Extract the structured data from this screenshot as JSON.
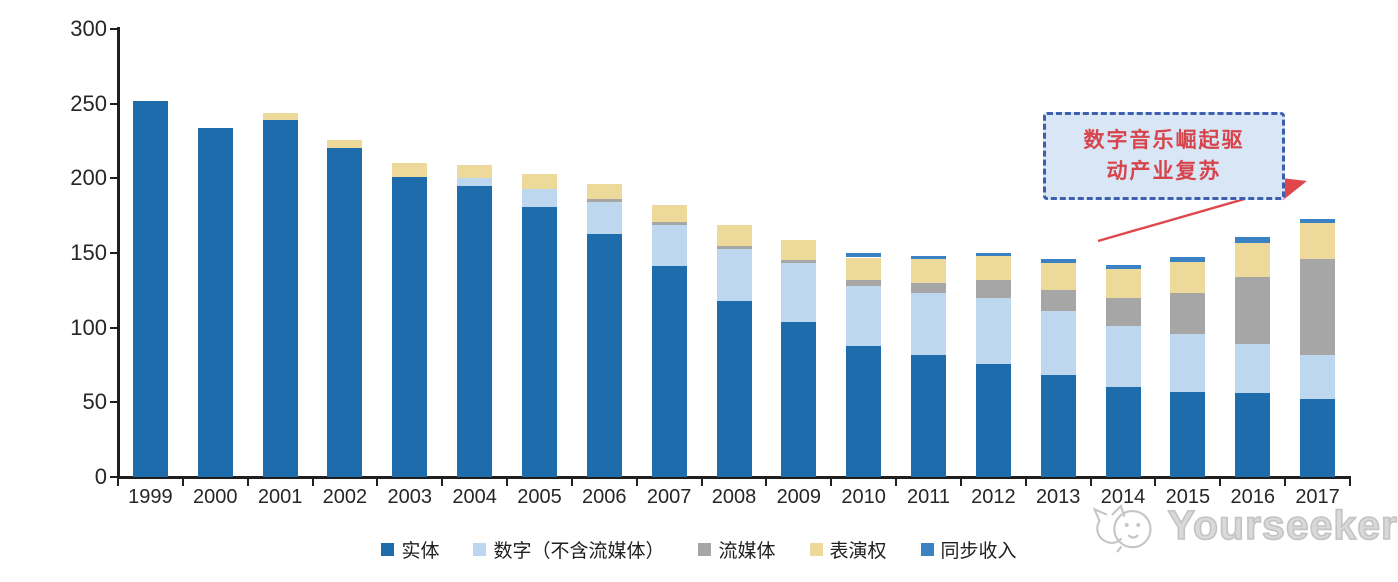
{
  "annotation": {
    "line1": "数字音乐崛起驱",
    "line2": "动产业复苏",
    "box_fill": "#d9e6f6",
    "border_color": "#3d5fae",
    "text_color": "#d8444c",
    "arrow_color": "#e0474d"
  },
  "watermark": {
    "brand": "Yourseeker",
    "logo": "cat-logo-icon",
    "color": "#c3c3c3"
  },
  "chart_data": {
    "type": "bar",
    "stacked": true,
    "title": "",
    "xlabel": "",
    "ylabel": "",
    "grid": false,
    "legend_position": "bottom",
    "ylim": [
      0,
      300
    ],
    "yticks": [
      0,
      50,
      100,
      150,
      200,
      250,
      300
    ],
    "categories": [
      "1999",
      "2000",
      "2001",
      "2002",
      "2003",
      "2004",
      "2005",
      "2006",
      "2007",
      "2008",
      "2009",
      "2010",
      "2011",
      "2012",
      "2013",
      "2014",
      "2015",
      "2016",
      "2017"
    ],
    "series": [
      {
        "name": "实体",
        "color": "#1e6cac",
        "values": [
          252,
          234,
          239,
          220,
          201,
          195,
          181,
          163,
          141,
          118,
          104,
          88,
          82,
          76,
          68,
          60,
          57,
          56,
          52
        ]
      },
      {
        "name": "数字（不含流媒体）",
        "color": "#bdd7ee",
        "values": [
          0,
          0,
          0,
          0,
          0,
          5,
          12,
          21,
          28,
          35,
          39,
          40,
          41,
          44,
          43,
          41,
          39,
          33,
          30
        ]
      },
      {
        "name": "流媒体",
        "color": "#a6a6a6",
        "values": [
          0,
          0,
          0,
          0,
          0,
          0,
          0,
          2,
          2,
          2,
          2,
          4,
          7,
          12,
          14,
          19,
          27,
          45,
          64
        ]
      },
      {
        "name": "表演权",
        "color": "#edd99a",
        "values": [
          0,
          0,
          5,
          6,
          9,
          9,
          10,
          10,
          11,
          14,
          14,
          15,
          16,
          16,
          18,
          19,
          21,
          23,
          24
        ]
      },
      {
        "name": "同步收入",
        "color": "#3b82c4",
        "values": [
          0,
          0,
          0,
          0,
          0,
          0,
          0,
          0,
          0,
          0,
          0,
          3,
          2,
          2,
          3,
          3,
          3,
          4,
          3
        ]
      }
    ]
  }
}
